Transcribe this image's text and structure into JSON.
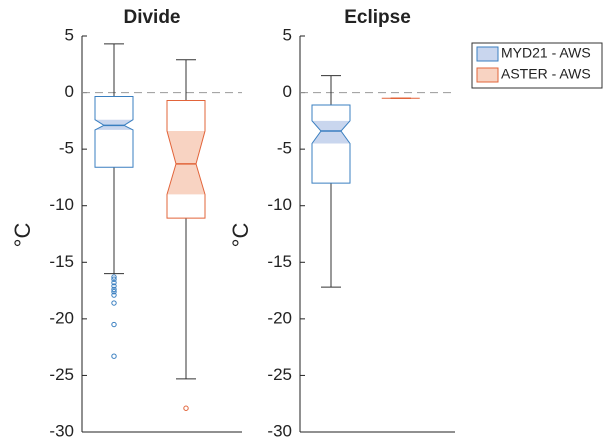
{
  "chart_data": {
    "type": "box",
    "categories": [
      "Divide",
      "Eclipse"
    ],
    "ylabel": "°C",
    "ylim": [
      -30,
      5
    ],
    "yticks": [
      -30,
      -25,
      -20,
      -15,
      -10,
      -5,
      0,
      5
    ],
    "reference_line": 0,
    "series": [
      {
        "name": "MYD21 - AWS",
        "color": "#3a7fc0",
        "fill": "#c9d6ee",
        "values": [
          {
            "whisker_low": -16.0,
            "q1": -6.6,
            "notch_low": -3.3,
            "median": -2.9,
            "notch_high": -2.4,
            "q3": -0.35,
            "whisker_high": 4.3,
            "outliers": [
              -16.3,
              -16.5,
              -16.8,
              -17.1,
              -17.4,
              -17.6,
              -17.9,
              -18.6,
              -20.5,
              -23.3
            ]
          },
          {
            "whisker_low": -17.2,
            "q1": -8.0,
            "notch_low": -4.5,
            "median": -3.4,
            "notch_high": -2.5,
            "q3": -1.1,
            "whisker_high": 1.5
          }
        ]
      },
      {
        "name": "ASTER - AWS",
        "color": "#e2643a",
        "fill": "#f8d3c2",
        "values": [
          {
            "whisker_low": -25.3,
            "q1": -11.1,
            "notch_low": -9.0,
            "median": -6.3,
            "notch_high": -3.4,
            "q3": -0.7,
            "whisker_high": 2.9,
            "outliers": [
              -27.9
            ]
          },
          {
            "whisker_low": -0.5,
            "q1": -0.5,
            "notch_low": -0.5,
            "median": -0.5,
            "notch_high": -0.5,
            "q3": -0.5,
            "whisker_high": -0.5
          }
        ]
      }
    ]
  }
}
